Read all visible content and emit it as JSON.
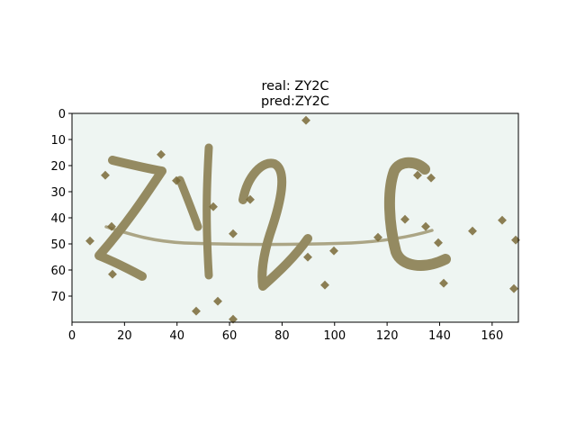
{
  "title": {
    "line1": "real: ZY2C",
    "line2": "pred:ZY2C"
  },
  "image": {
    "description_text": "ZY2C",
    "background_color": "#eef5f2",
    "ink_color": "#8b7f52",
    "noise_color": "#7a6a38"
  },
  "axes": {
    "x_ticks": [
      0,
      20,
      40,
      60,
      80,
      100,
      120,
      140,
      160
    ],
    "y_ticks": [
      0,
      10,
      20,
      30,
      40,
      50,
      60,
      70
    ],
    "x_range": [
      0,
      170
    ],
    "y_range": [
      0,
      80
    ]
  }
}
